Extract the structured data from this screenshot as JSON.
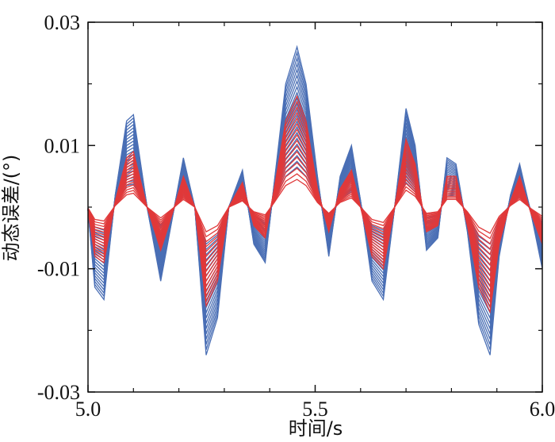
{
  "chart_data": {
    "type": "line",
    "title": "",
    "xlabel": "时间/s",
    "ylabel": "动态误差/(°)",
    "xlim": [
      5.0,
      6.0
    ],
    "ylim": [
      -0.03,
      0.03
    ],
    "x_ticks": [
      "5.0",
      "5.5",
      "6.0"
    ],
    "y_ticks": [
      "0.03",
      "0.01",
      "-0.01",
      "-0.03"
    ],
    "grid": false,
    "legend": "none",
    "series_colors": {
      "blue_band": "#4a6fb5",
      "red_band": "#e0393a"
    },
    "waveform": {
      "x": [
        5.0,
        5.015,
        5.035,
        5.06,
        5.085,
        5.1,
        5.13,
        5.16,
        5.19,
        5.21,
        5.235,
        5.26,
        5.285,
        5.31,
        5.34,
        5.365,
        5.39,
        5.41,
        5.435,
        5.46,
        5.48,
        5.505,
        5.53,
        5.555,
        5.58,
        5.6,
        5.625,
        5.65,
        5.675,
        5.7,
        5.72,
        5.745,
        5.77,
        5.79,
        5.81,
        5.835,
        5.86,
        5.885,
        5.905,
        5.93,
        5.95,
        5.975,
        6.0
      ],
      "blue_envelope": [
        -0.0005,
        -0.013,
        -0.015,
        0.002,
        0.014,
        0.015,
        0.0,
        -0.012,
        0.0,
        0.008,
        0.0,
        -0.024,
        -0.018,
        0.0,
        0.006,
        -0.006,
        -0.009,
        0.004,
        0.02,
        0.026,
        0.02,
        0.005,
        -0.008,
        0.005,
        0.01,
        0.001,
        -0.012,
        -0.015,
        0.0,
        0.016,
        0.01,
        -0.007,
        -0.005,
        0.008,
        0.007,
        -0.004,
        -0.019,
        -0.024,
        -0.008,
        0.002,
        0.007,
        -0.001,
        -0.01
      ],
      "red_envelope": [
        -0.0005,
        -0.008,
        -0.009,
        0.001,
        0.008,
        0.009,
        0.0,
        -0.007,
        0.0,
        0.005,
        0.0,
        -0.016,
        -0.012,
        0.0,
        0.004,
        -0.003,
        -0.005,
        0.003,
        0.014,
        0.018,
        0.014,
        0.003,
        -0.004,
        0.003,
        0.006,
        0.0,
        -0.008,
        -0.01,
        0.0,
        0.011,
        0.007,
        -0.004,
        -0.003,
        0.005,
        0.005,
        -0.003,
        -0.013,
        -0.017,
        -0.006,
        0.001,
        0.005,
        -0.001,
        -0.006
      ]
    }
  }
}
